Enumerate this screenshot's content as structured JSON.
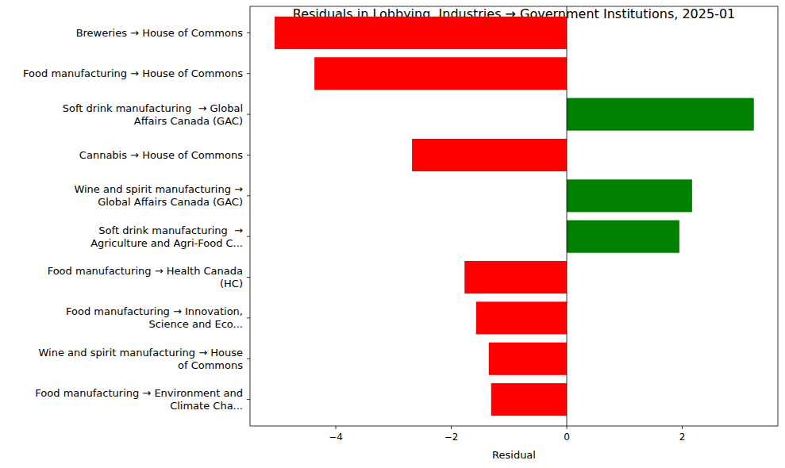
{
  "chart_data": {
    "type": "bar",
    "orientation": "horizontal",
    "title": "Residuals in Lobbying, Industries → Government Institutions, 2025-01",
    "x_label": "Residual",
    "categories": [
      "Breweries → House of Commons",
      "Food manufacturing → House of Commons",
      "Soft drink manufacturing  → Global\nAffairs Canada (GAC)",
      "Cannabis → House of Commons",
      "Wine and spirit manufacturing →\nGlobal Affairs Canada (GAC)",
      "Soft drink manufacturing  →\nAgriculture and Agri-Food C...",
      "Food manufacturing → Health Canada\n(HC)",
      "Food manufacturing → Innovation,\nScience and Eco...",
      "Wine and spirit manufacturing → House\nof Commons",
      "Food manufacturing → Environment and\nClimate Cha..."
    ],
    "values": [
      -5.06,
      -4.37,
      3.24,
      -2.68,
      2.17,
      1.95,
      -1.77,
      -1.57,
      -1.35,
      -1.31
    ],
    "colors": [
      "red",
      "red",
      "green",
      "red",
      "green",
      "green",
      "red",
      "red",
      "red",
      "red"
    ],
    "xlim": [
      -5.485,
      3.656
    ],
    "xticks": [
      {
        "value": -4,
        "label": "−4"
      },
      {
        "value": -2,
        "label": "−2"
      },
      0,
      2
    ],
    "grid": false
  }
}
